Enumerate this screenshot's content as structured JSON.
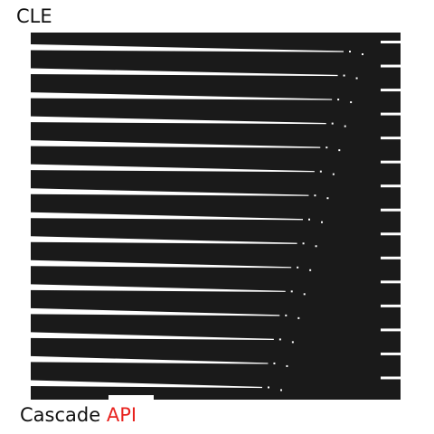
{
  "header": {
    "label": "CLE"
  },
  "footer": {
    "prefix": "Cascade",
    "highlight": "API"
  },
  "colors": {
    "ink": "#1a1a1a",
    "paper": "#ffffff",
    "accent": "#e8231f"
  }
}
